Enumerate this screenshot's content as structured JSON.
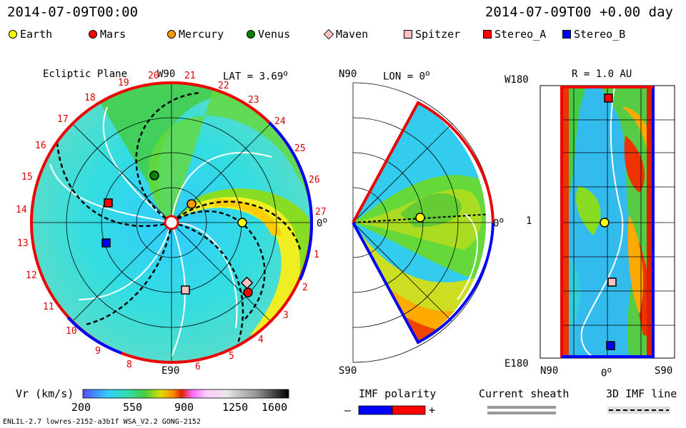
{
  "header": {
    "left_time": "2014-07-09T00:00",
    "right_time": "2014-07-09T00 +0.00 day"
  },
  "legend": [
    {
      "label": "Earth",
      "shape": "circle",
      "color": "#ffff00"
    },
    {
      "label": "Mars",
      "shape": "circle",
      "color": "#ff0000"
    },
    {
      "label": "Mercury",
      "shape": "circle",
      "color": "#ff9900"
    },
    {
      "label": "Venus",
      "shape": "circle",
      "color": "#008000"
    },
    {
      "label": "Maven",
      "shape": "diamond",
      "color": "#ffc0c0"
    },
    {
      "label": "Spitzer",
      "shape": "square",
      "color": "#ffc0c0"
    },
    {
      "label": "Stereo_A",
      "shape": "square",
      "color": "#ff0000"
    },
    {
      "label": "Stereo_B",
      "shape": "square",
      "color": "#0000ff"
    }
  ],
  "ecliptic_panel": {
    "title": "Ecliptic Plane",
    "top_label": "W90",
    "bottom_label": "E90",
    "right_label": "0",
    "lat_label": "LAT = 3.69",
    "carrington_numbers": [
      "19",
      "20",
      "21",
      "22",
      "23",
      "24",
      "25",
      "26",
      "27",
      "1",
      "2",
      "3",
      "4",
      "5",
      "6",
      "8",
      "9",
      "10",
      "11",
      "12",
      "13",
      "14",
      "15",
      "16",
      "17",
      "18"
    ]
  },
  "meridional_panel": {
    "top_label": "N90",
    "bottom_label": "S90",
    "lon_label": "LON = 0",
    "right_label": "0"
  },
  "r_panel": {
    "title": "R = 1.0 AU",
    "top_label": "W180",
    "middle_label": "1",
    "bottom_label": "E180",
    "x_left": "N90",
    "x_mid": "0",
    "x_right": "S90"
  },
  "colorbar": {
    "label": "Vr (km/s)",
    "ticks": [
      "200",
      "550",
      "900",
      "1250",
      "1600"
    ]
  },
  "imf_polarity": {
    "label": "IMF polarity",
    "minus": "–",
    "plus": "+"
  },
  "current_sheath": {
    "label": "Current sheath"
  },
  "imf_line": {
    "label": "3D IMF line"
  },
  "footer": {
    "model_info": "ENLIL-2.7 lowres-2152-a3b1f WSA_V2.2 GONG-2152"
  }
}
